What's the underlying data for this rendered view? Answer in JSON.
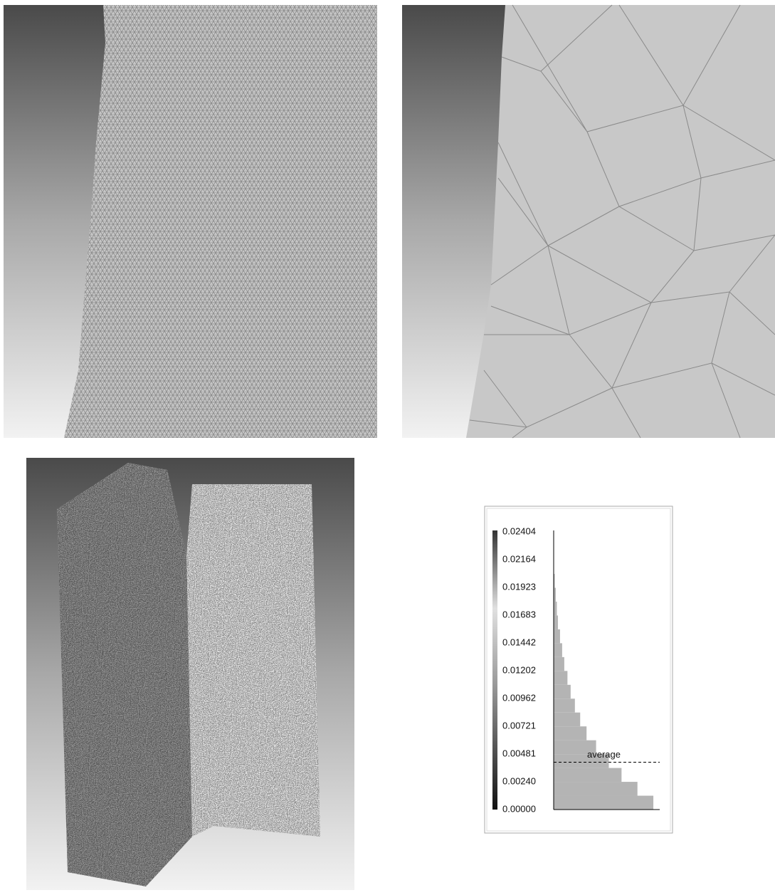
{
  "chart_data": {
    "type": "histogram",
    "orientation": "horizontal",
    "ylim": [
      0,
      0.02404
    ],
    "yticks": [
      {
        "value": 0,
        "label": "0.00000"
      },
      {
        "value": 0.0024,
        "label": "0.00240"
      },
      0.00481,
      0.00721,
      0.00962,
      0.01202,
      0.01442,
      0.01683,
      0.01923,
      0.02164,
      0.02404
    ],
    "bins": [
      0,
      0.0012,
      0.0024,
      0.0036,
      0.0048,
      0.006,
      0.0072,
      0.0084,
      0.0096,
      0.0108,
      0.012,
      0.0132,
      0.0144,
      0.0156,
      0.0168,
      0.018,
      0.0192,
      0.0204,
      0.0216,
      0.0228,
      0.024
    ],
    "counts": [
      0.94,
      0.79,
      0.64,
      0.52,
      0.4,
      0.31,
      0.25,
      0.2,
      0.16,
      0.13,
      0.1,
      0.08,
      0.06,
      0.04,
      0.03,
      0.02,
      0.01,
      0,
      0,
      0
    ],
    "xlim": [
      0,
      1
    ],
    "color": "#b4b4b4",
    "average": {
      "label": "average",
      "value": 0.0041
    }
  }
}
